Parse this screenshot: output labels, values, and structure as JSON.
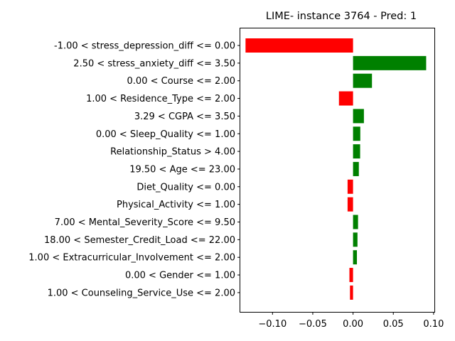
{
  "chart_data": {
    "type": "bar",
    "orientation": "horizontal",
    "title": "LIME- instance 3764 - Pred: 1",
    "xlabel": "",
    "ylabel": "",
    "grid": false,
    "xlim": [
      -0.14,
      0.101
    ],
    "xticks": [
      -0.1,
      -0.05,
      0.0,
      0.05,
      0.1
    ],
    "xtick_labels": [
      "−0.10",
      "−0.05",
      "0.00",
      "0.05",
      "0.10"
    ],
    "positive_color": "#008000",
    "negative_color": "#ff0000",
    "categories": [
      "-1.00 < stress_depression_diff <= 0.00",
      "2.50 < stress_anxiety_diff <= 3.50",
      "0.00 < Course <= 2.00",
      "1.00 < Residence_Type <= 2.00",
      "3.29 < CGPA <= 3.50",
      "0.00 < Sleep_Quality <= 1.00",
      "Relationship_Status > 4.00",
      "19.50 < Age <= 23.00",
      "Diet_Quality <= 0.00",
      "Physical_Activity <= 1.00",
      "7.00 < Mental_Severity_Score <= 9.50",
      "18.00 < Semester_Credit_Load <= 22.00",
      "1.00 < Extracurricular_Involvement <= 2.00",
      "0.00 < Gender <= 1.00",
      "1.00 < Counseling_Service_Use <= 2.00"
    ],
    "values": [
      -0.1335,
      0.0908,
      0.0235,
      -0.0175,
      0.0135,
      0.009,
      0.0088,
      0.0072,
      -0.0068,
      -0.0068,
      0.0062,
      0.0055,
      0.0048,
      -0.0045,
      -0.0038
    ]
  }
}
